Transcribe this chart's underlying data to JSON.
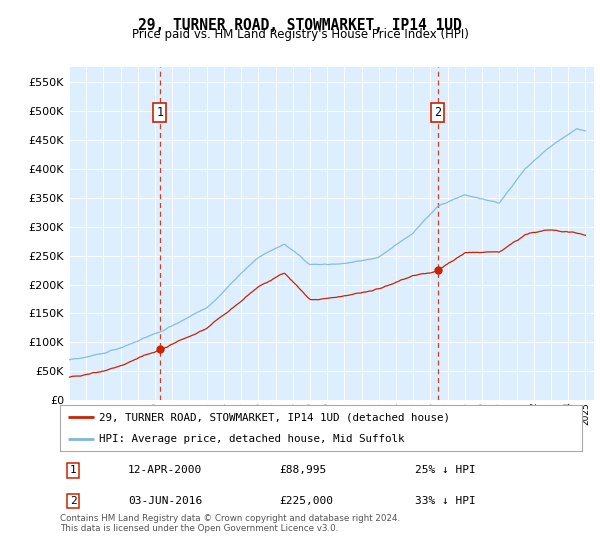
{
  "title": "29, TURNER ROAD, STOWMARKET, IP14 1UD",
  "subtitle": "Price paid vs. HM Land Registry's House Price Index (HPI)",
  "ytick_values": [
    0,
    50000,
    100000,
    150000,
    200000,
    250000,
    300000,
    350000,
    400000,
    450000,
    500000,
    550000
  ],
  "ylim": [
    0,
    575000
  ],
  "xlim_start": 1995.0,
  "xlim_end": 2025.5,
  "hpi_color": "#7db8d8",
  "price_color": "#cc2200",
  "dashed_vline_color": "#cc2200",
  "transaction1_x": 2000.28,
  "transaction1_price": 88995,
  "transaction2_x": 2016.42,
  "transaction2_price": 225000,
  "legend_line1": "29, TURNER ROAD, STOWMARKET, IP14 1UD (detached house)",
  "legend_line2": "HPI: Average price, detached house, Mid Suffolk",
  "table_row1": [
    "1",
    "12-APR-2000",
    "£88,995",
    "25% ↓ HPI"
  ],
  "table_row2": [
    "2",
    "03-JUN-2016",
    "£225,000",
    "33% ↓ HPI"
  ],
  "footnote": "Contains HM Land Registry data © Crown copyright and database right 2024.\nThis data is licensed under the Open Government Licence v3.0.",
  "background_color": "#ffffff",
  "plot_background": "#ddeeff",
  "grid_color": "#ffffff",
  "title_fontsize": 11,
  "subtitle_fontsize": 9,
  "tick_fontsize": 8
}
